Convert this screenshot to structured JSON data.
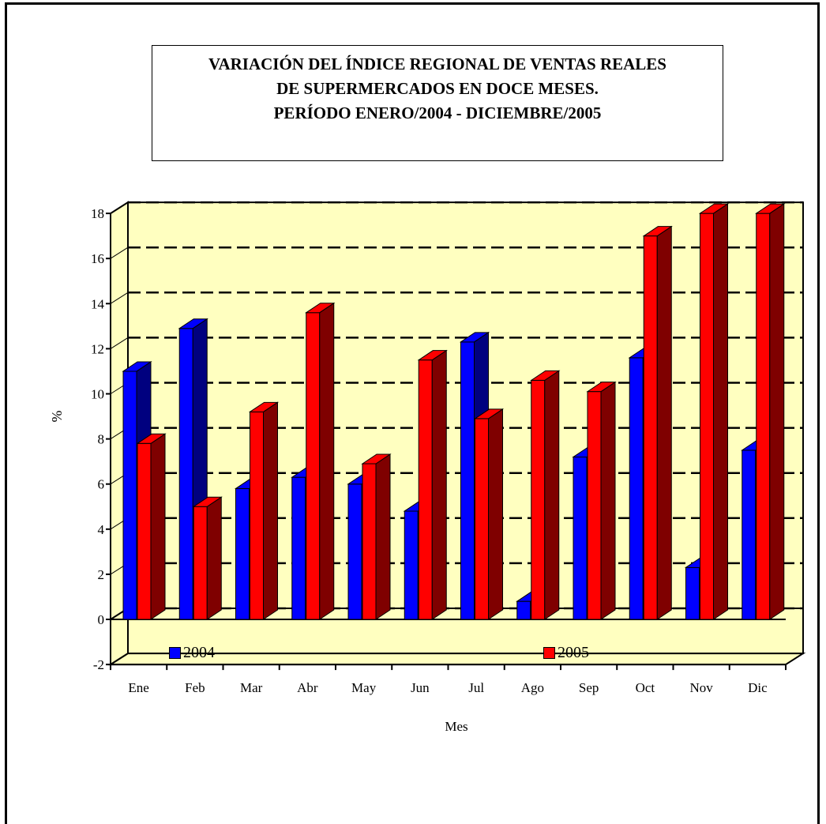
{
  "chart_data": {
    "type": "bar",
    "title": "VARIACIÓN DEL ÍNDICE REGIONAL DE VENTAS REALES DE SUPERMERCADOS EN DOCE MESES. PERÍODO ENERO/2004 - DICIEMBRE/2005",
    "title_lines": [
      "VARIACIÓN DEL ÍNDICE REGIONAL DE VENTAS REALES",
      "DE SUPERMERCADOS EN DOCE MESES.",
      "PERÍODO ENERO/2004 - DICIEMBRE/2005"
    ],
    "xlabel": "Mes",
    "ylabel": "%",
    "categories": [
      "Ene",
      "Feb",
      "Mar",
      "Abr",
      "May",
      "Jun",
      "Jul",
      "Ago",
      "Sep",
      "Oct",
      "Nov",
      "Dic"
    ],
    "series": [
      {
        "name": "2004",
        "color": "#0000ff",
        "values": [
          11.0,
          12.9,
          5.8,
          6.3,
          6.0,
          4.8,
          12.3,
          0.8,
          7.2,
          11.6,
          2.3,
          7.5
        ]
      },
      {
        "name": "2005",
        "color": "#ff0000",
        "values": [
          7.8,
          5.0,
          9.2,
          13.6,
          6.9,
          11.5,
          8.9,
          10.6,
          10.1,
          17.0,
          18.0,
          18.0
        ]
      }
    ],
    "ylim": [
      -2,
      18
    ],
    "yticks": [
      "-2",
      "0",
      "2",
      "4",
      "6",
      "8",
      "10",
      "12",
      "14",
      "16",
      "18"
    ],
    "grid": true,
    "legend_position": "bottom",
    "plot_background": "#ffffc0",
    "style": "3d-clustered-bar"
  }
}
